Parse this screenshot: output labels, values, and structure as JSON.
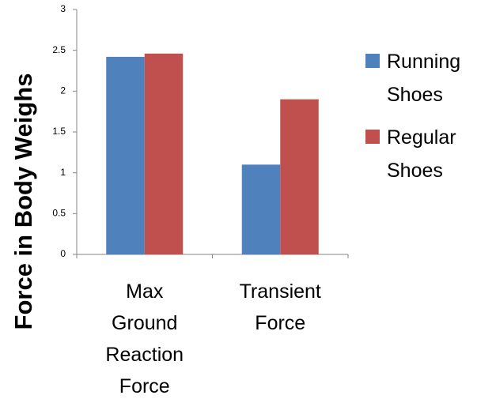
{
  "chart_data": {
    "type": "bar",
    "y_label": "Force in Body Weighs",
    "categories": [
      "Max Ground Reaction Force",
      "Transient Force"
    ],
    "series": [
      {
        "name": "Running Shoes",
        "color": "#4f81bd",
        "values": [
          2.42,
          1.1
        ]
      },
      {
        "name": "Regular Shoes",
        "color": "#c0504d",
        "values": [
          2.46,
          1.9
        ]
      }
    ],
    "ylim": [
      0,
      3
    ],
    "yticks": [
      0,
      0.5,
      1,
      1.5,
      2,
      2.5,
      3
    ],
    "grid": false,
    "legend": "right"
  }
}
